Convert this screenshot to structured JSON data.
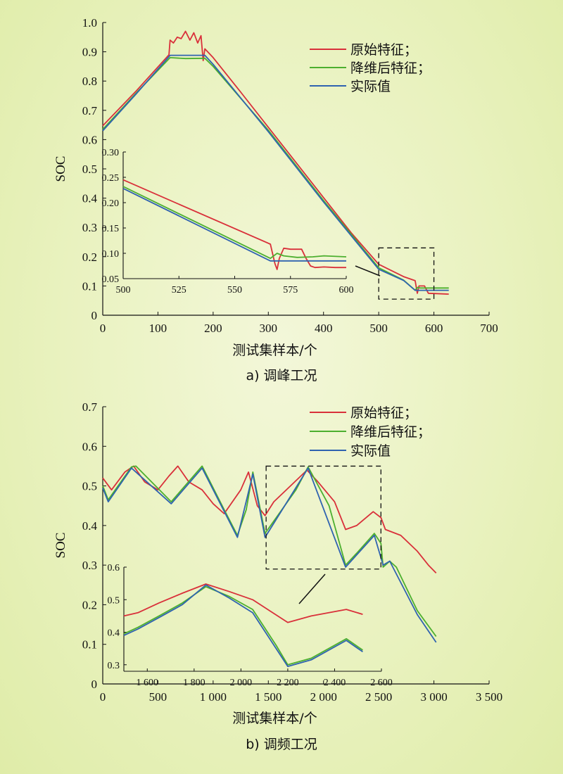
{
  "chart_data": [
    {
      "type": "line",
      "caption": "a) 调峰工况",
      "xlabel": "测试集样本/个",
      "ylabel": "SOC",
      "xlim": [
        0,
        700
      ],
      "ylim": [
        0,
        1.0
      ],
      "xticks": [
        "0",
        "100",
        "200",
        "300",
        "400",
        "500",
        "600",
        "700"
      ],
      "yticks": [
        "0",
        "0.1",
        "0.2",
        "0.3",
        "0.4",
        "0.5",
        "0.6",
        "0.7",
        "0.8",
        "0.9",
        "1.0"
      ],
      "legend": [
        "原始特征；",
        "降维后特征；",
        "实际值"
      ],
      "legend_position": "top-right",
      "colors": {
        "original": "#d9303a",
        "reduced": "#4caf2f",
        "actual": "#2f63b0"
      },
      "series": [
        {
          "name": "原始特征；",
          "color": "#d9303a",
          "x": [
            0,
            60,
            120,
            122,
            128,
            135,
            142,
            150,
            158,
            165,
            172,
            178,
            182,
            185,
            200,
            250,
            300,
            350,
            400,
            450,
            500,
            545,
            566,
            570,
            573,
            583,
            590,
            627
          ],
          "y": [
            0.647,
            0.765,
            0.89,
            0.94,
            0.93,
            0.95,
            0.945,
            0.97,
            0.94,
            0.965,
            0.93,
            0.955,
            0.87,
            0.91,
            0.88,
            0.762,
            0.642,
            0.522,
            0.402,
            0.282,
            0.174,
            0.132,
            0.118,
            0.075,
            0.1,
            0.1,
            0.075,
            0.072
          ]
        },
        {
          "name": "降维后特征；",
          "color": "#4caf2f",
          "x": [
            0,
            60,
            122,
            150,
            185,
            200,
            300,
            400,
            500,
            545,
            566,
            570,
            575,
            627
          ],
          "y": [
            0.635,
            0.758,
            0.88,
            0.877,
            0.878,
            0.85,
            0.632,
            0.392,
            0.162,
            0.12,
            0.085,
            0.095,
            0.093,
            0.093
          ]
        },
        {
          "name": "实际值",
          "color": "#2f63b0",
          "x": [
            0,
            60,
            122,
            185,
            200,
            300,
            400,
            500,
            545,
            566,
            627
          ],
          "y": [
            0.63,
            0.755,
            0.888,
            0.888,
            0.857,
            0.627,
            0.387,
            0.157,
            0.119,
            0.085,
            0.085
          ]
        }
      ],
      "zoom_box": {
        "x": [
          500,
          600
        ],
        "y": [
          0.055,
          0.23
        ]
      },
      "inset": {
        "xlim": [
          500,
          600
        ],
        "ylim": [
          0.05,
          0.3
        ],
        "xticks": [
          "500",
          "525",
          "550",
          "575",
          "600"
        ],
        "yticks": [
          "0.05",
          "0.10",
          "0.15",
          "0.20",
          "0.25",
          "0.30"
        ],
        "series": [
          {
            "name": "原始特征；",
            "color": "#d9303a",
            "x": [
              500,
              566,
              568,
              569,
              570,
              572,
              575,
              580,
              582,
              584,
              586,
              590,
              595,
              600
            ],
            "y": [
              0.245,
              0.118,
              0.08,
              0.068,
              0.09,
              0.11,
              0.108,
              0.108,
              0.09,
              0.075,
              0.072,
              0.073,
              0.072,
              0.072
            ]
          },
          {
            "name": "降维后特征；",
            "color": "#4caf2f",
            "x": [
              500,
              566,
              569,
              572,
              578,
              585,
              590,
              600
            ],
            "y": [
              0.232,
              0.09,
              0.1,
              0.095,
              0.092,
              0.093,
              0.095,
              0.093
            ]
          },
          {
            "name": "实际值",
            "color": "#2f63b0",
            "x": [
              500,
              566,
              600
            ],
            "y": [
              0.228,
              0.085,
              0.085
            ]
          }
        ]
      }
    },
    {
      "type": "line",
      "caption": "b) 调频工况",
      "xlabel": "测试集样本/个",
      "ylabel": "SOC",
      "xlim": [
        0,
        3500
      ],
      "ylim": [
        0,
        0.7
      ],
      "xticks": [
        "0",
        "500",
        "1 000",
        "1 500",
        "2 000",
        "2 500",
        "3 000",
        "3 500"
      ],
      "yticks": [
        "0",
        "0.1",
        "0.2",
        "0.3",
        "0.4",
        "0.5",
        "0.6",
        "0.7"
      ],
      "legend": [
        "原始特征；",
        "降维后特征；",
        "实际值"
      ],
      "legend_position": "top-right",
      "colors": {
        "original": "#d9303a",
        "reduced": "#4caf2f",
        "actual": "#2f63b0"
      },
      "series": [
        {
          "name": "原始特征；",
          "color": "#d9303a",
          "x": [
            0,
            80,
            200,
            280,
            380,
            500,
            600,
            680,
            780,
            900,
            1000,
            1100,
            1250,
            1320,
            1400,
            1470,
            1550,
            1700,
            1850,
            1950,
            2100,
            2200,
            2300,
            2450,
            2520,
            2560,
            2700,
            2850,
            2950,
            3020
          ],
          "y": [
            0.52,
            0.49,
            0.535,
            0.55,
            0.51,
            0.49,
            0.525,
            0.55,
            0.51,
            0.49,
            0.455,
            0.43,
            0.49,
            0.535,
            0.45,
            0.425,
            0.46,
            0.5,
            0.54,
            0.51,
            0.46,
            0.39,
            0.4,
            0.435,
            0.42,
            0.39,
            0.375,
            0.335,
            0.3,
            0.28
          ]
        },
        {
          "name": "降维后特征；",
          "color": "#4caf2f",
          "x": [
            0,
            50,
            260,
            300,
            620,
            900,
            1100,
            1220,
            1300,
            1360,
            1470,
            1750,
            1860,
            2050,
            2200,
            2300,
            2460,
            2520,
            2540,
            2600,
            2660,
            2850,
            3020
          ],
          "y": [
            0.5,
            0.465,
            0.548,
            0.55,
            0.46,
            0.55,
            0.44,
            0.375,
            0.44,
            0.535,
            0.38,
            0.49,
            0.548,
            0.45,
            0.3,
            0.33,
            0.38,
            0.355,
            0.295,
            0.31,
            0.295,
            0.185,
            0.12
          ]
        },
        {
          "name": "实际值",
          "color": "#2f63b0",
          "x": [
            0,
            50,
            260,
            620,
            900,
            1220,
            1360,
            1470,
            1860,
            2200,
            2460,
            2540,
            2600,
            2850,
            3020
          ],
          "y": [
            0.495,
            0.46,
            0.545,
            0.455,
            0.545,
            0.37,
            0.53,
            0.37,
            0.545,
            0.295,
            0.375,
            0.3,
            0.31,
            0.175,
            0.105
          ]
        }
      ],
      "zoom_box": {
        "x": [
          1480,
          2520
        ],
        "y": [
          0.29,
          0.55
        ]
      },
      "inset": {
        "xlim": [
          1500,
          2600
        ],
        "ylim": [
          0.28,
          0.6
        ],
        "xticks": [
          "1 600",
          "1 800",
          "2 000",
          "2 200",
          "2 400",
          "2 600"
        ],
        "yticks": [
          "0.3",
          "0.4",
          "0.5",
          "0.6"
        ],
        "series": [
          {
            "name": "原始特征；",
            "color": "#d9303a",
            "x": [
              1500,
              1560,
              1650,
              1750,
              1850,
              1950,
              2050,
              2200,
              2300,
              2450,
              2520
            ],
            "y": [
              0.45,
              0.46,
              0.49,
              0.52,
              0.548,
              0.525,
              0.5,
              0.43,
              0.45,
              0.47,
              0.455
            ]
          },
          {
            "name": "降维后特征；",
            "color": "#4caf2f",
            "x": [
              1500,
              1560,
              1650,
              1750,
              1850,
              1950,
              2050,
              2150,
              2200,
              2300,
              2450,
              2520
            ],
            "y": [
              0.395,
              0.415,
              0.45,
              0.49,
              0.54,
              0.51,
              0.47,
              0.36,
              0.3,
              0.32,
              0.38,
              0.345
            ]
          },
          {
            "name": "实际值",
            "color": "#2f63b0",
            "x": [
              1500,
              1560,
              1650,
              1750,
              1850,
              1950,
              2050,
              2150,
              2200,
              2300,
              2450,
              2520
            ],
            "y": [
              0.39,
              0.41,
              0.445,
              0.485,
              0.545,
              0.505,
              0.46,
              0.35,
              0.295,
              0.315,
              0.375,
              0.34
            ]
          }
        ]
      }
    }
  ]
}
